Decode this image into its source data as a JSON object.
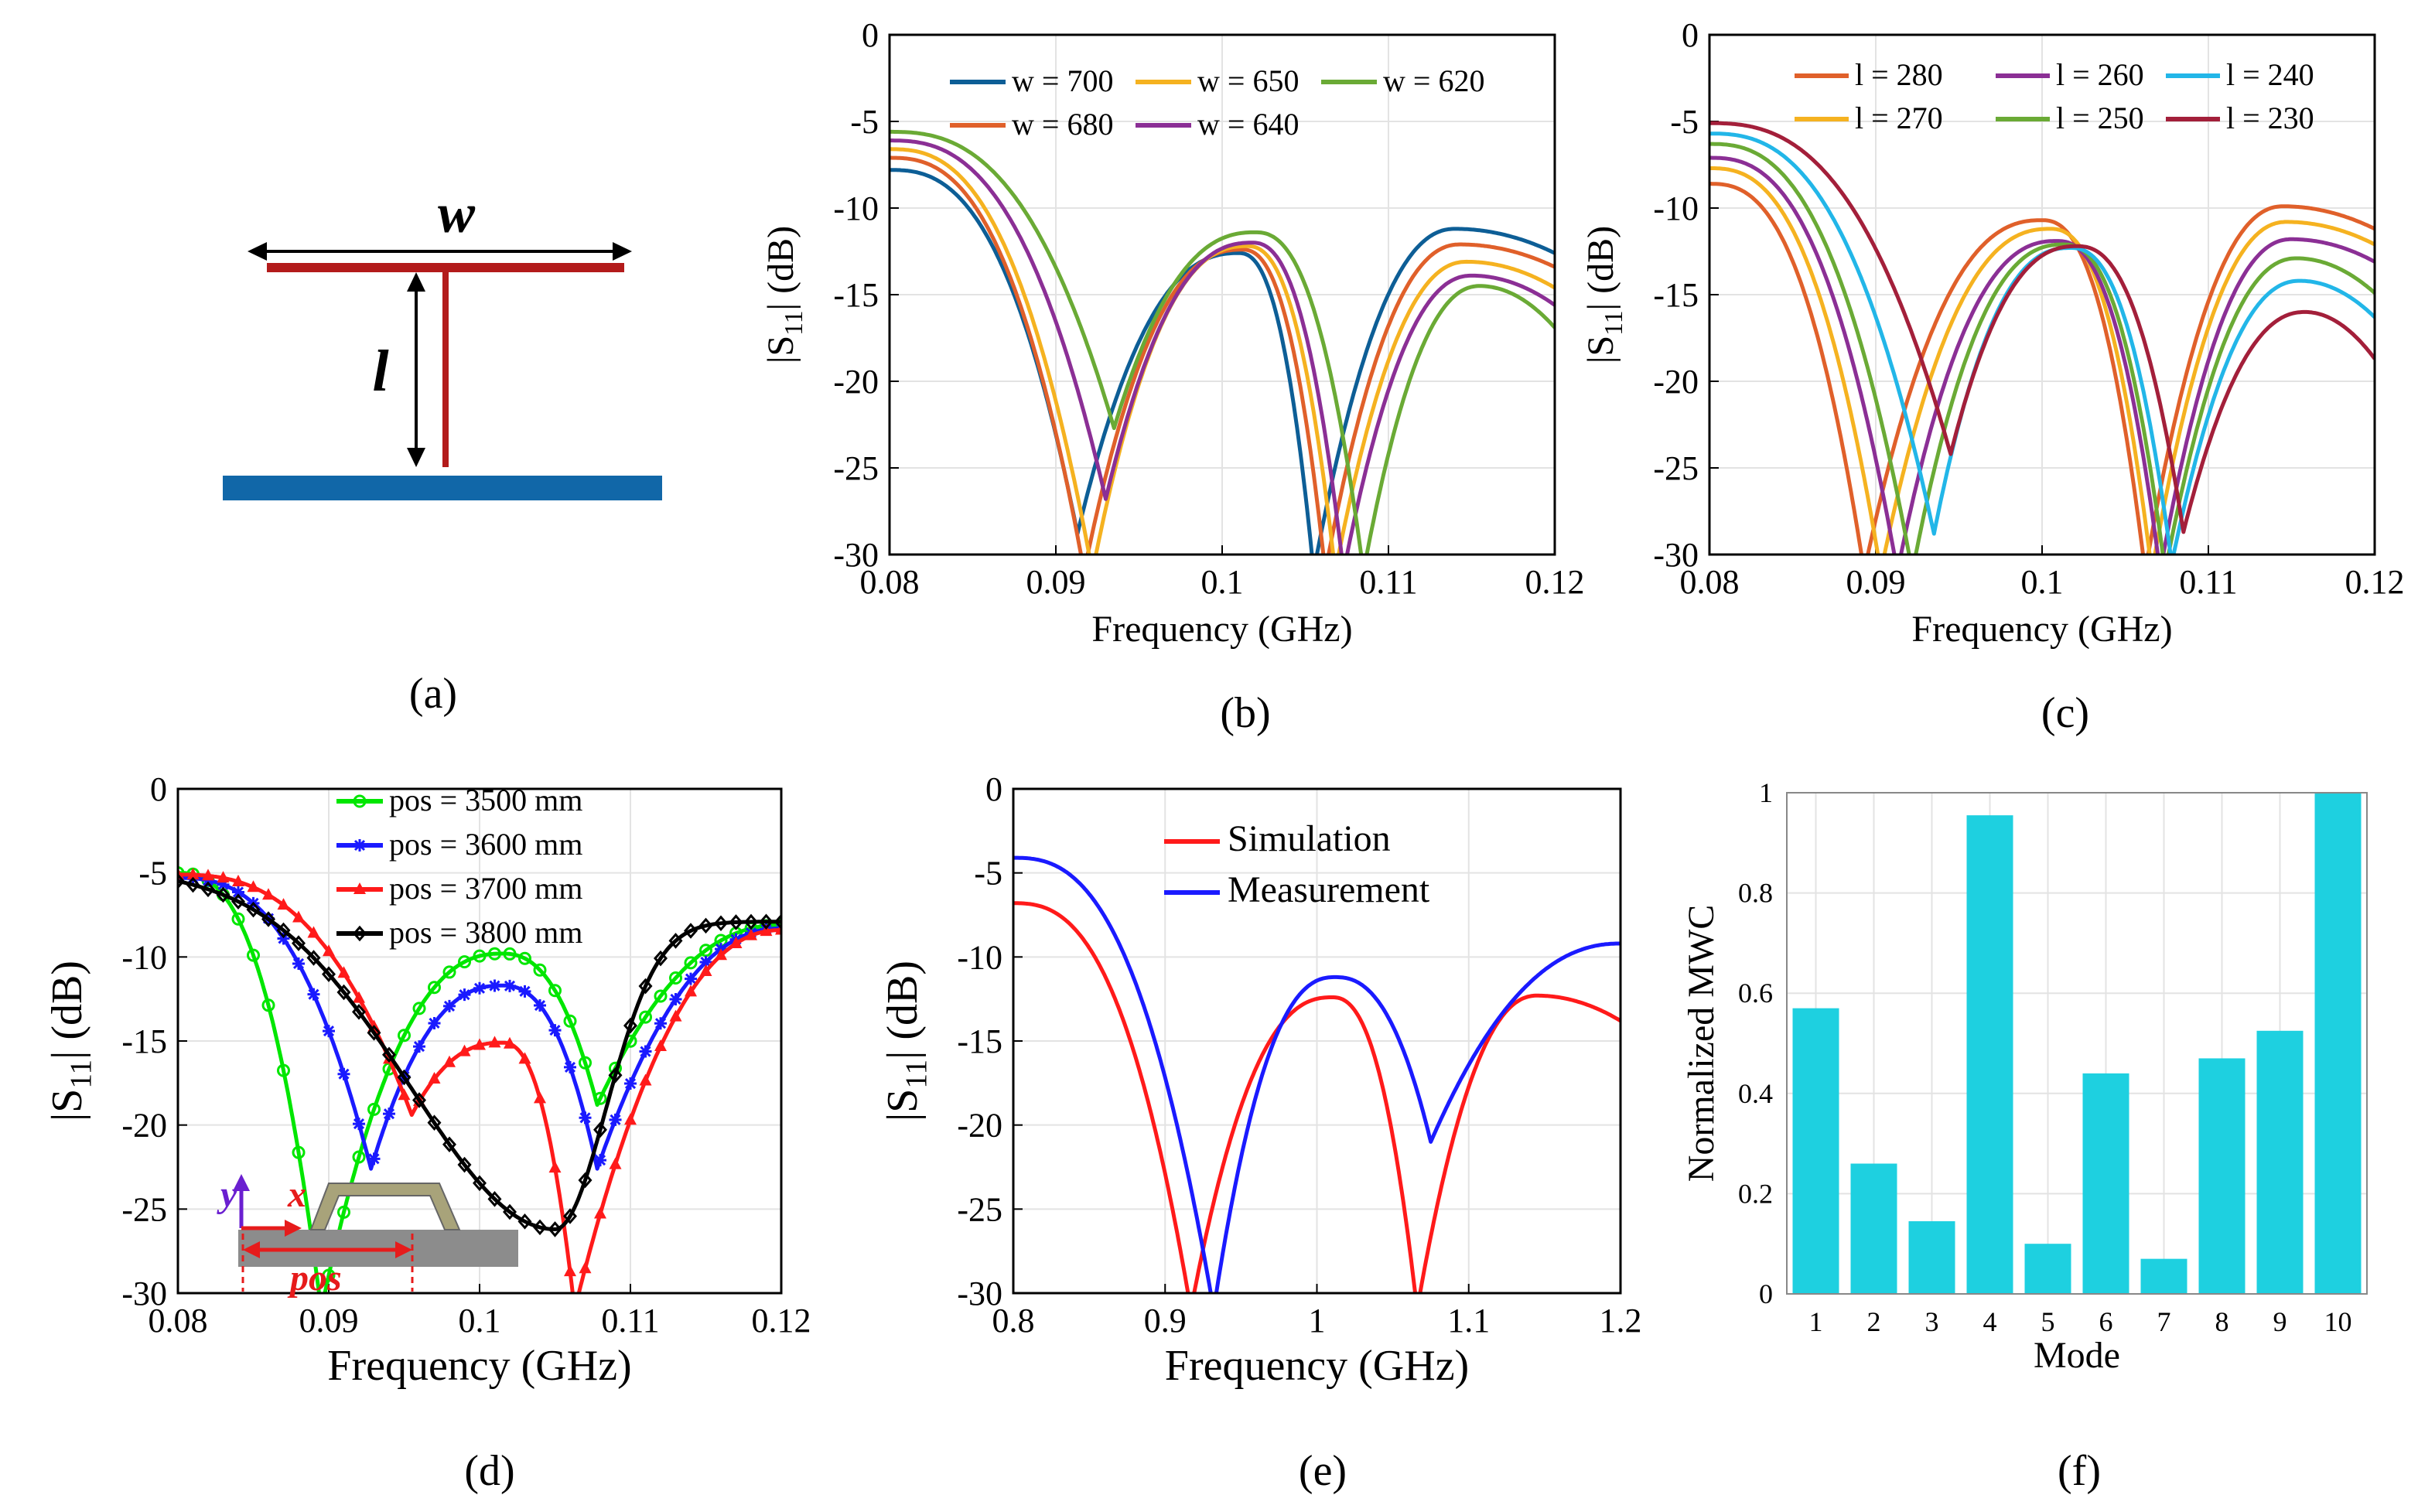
{
  "figure": {
    "captions": [
      "(a)",
      "(b)",
      "(c)",
      "(d)",
      "(e)",
      "(f)"
    ],
    "diagram_a": {
      "w_label": "w",
      "l_label": "l"
    },
    "inset_d": {
      "x_label": "x",
      "y_label": "y",
      "pos_label": "pos"
    }
  },
  "colors": {
    "w700": "#0d5e96",
    "w680": "#e0602a",
    "w650": "#f5b220",
    "w640": "#8b2f95",
    "w620": "#6aaa35",
    "l280": "#e0602a",
    "l270": "#f5b220",
    "l260": "#8b2f95",
    "l250": "#6aaa35",
    "l240": "#22b6e8",
    "l230": "#a31f3a",
    "green": "#00e600",
    "blue": "#1a1aff",
    "red": "#ff1a1a",
    "black": "#000000",
    "bar": "#1ed0e0",
    "antenna": "#b31b1b",
    "ground": "#1167a8"
  },
  "chart_data": [
    {
      "id": "b",
      "type": "line",
      "xlabel": "Frequency (GHz)",
      "ylabel": "|S11| (dB)",
      "xlim": [
        0.08,
        0.12
      ],
      "ylim": [
        -30,
        0
      ],
      "xticks": [
        "0.08",
        "0.09",
        "0.1",
        "0.11",
        "0.12"
      ],
      "yticks": [
        "0",
        "-5",
        "-10",
        "-15",
        "-20",
        "-25",
        "-30"
      ],
      "legend": [
        "w = 700",
        "w = 650",
        "w = 620",
        "w = 680",
        "w = 640"
      ],
      "series": [
        {
          "name": "w = 700",
          "color_key": "w700",
          "start": -7.8,
          "peak_x": 0.101,
          "peak_y": -12.6,
          "end": -12.6,
          "bump_x": 0.114,
          "bump_y": -11.2,
          "n1_x": 0.0913,
          "n1_y": -28.8,
          "n2_x": 0.1055,
          "n2_y": -31
        },
        {
          "name": "w = 680",
          "color_key": "w680",
          "start": -7.1,
          "peak_x": 0.1012,
          "peak_y": -12.4,
          "end": -13.4,
          "bump_x": 0.1143,
          "bump_y": -12.1,
          "n1_x": 0.0917,
          "n1_y": -31,
          "n2_x": 0.1062,
          "n2_y": -31
        },
        {
          "name": "w = 650",
          "color_key": "w650",
          "start": -6.6,
          "peak_x": 0.1015,
          "peak_y": -12.2,
          "end": -14.6,
          "bump_x": 0.1147,
          "bump_y": -13.1,
          "n1_x": 0.0922,
          "n1_y": -31,
          "n2_x": 0.1068,
          "n2_y": -31
        },
        {
          "name": "w = 640",
          "color_key": "w640",
          "start": -6.1,
          "peak_x": 0.1018,
          "peak_y": -12.0,
          "end": -15.6,
          "bump_x": 0.115,
          "bump_y": -13.9,
          "n1_x": 0.093,
          "n1_y": -26.8,
          "n2_x": 0.1073,
          "n2_y": -31
        },
        {
          "name": "w = 620",
          "color_key": "w620",
          "start": -5.6,
          "peak_x": 0.102,
          "peak_y": -11.4,
          "end": -16.9,
          "bump_x": 0.1155,
          "bump_y": -14.5,
          "n1_x": 0.0935,
          "n1_y": -22.7,
          "n2_x": 0.1085,
          "n2_y": -31
        }
      ]
    },
    {
      "id": "c",
      "type": "line",
      "xlabel": "Frequency (GHz)",
      "ylabel": "|S11| (dB)",
      "xlim": [
        0.08,
        0.12
      ],
      "ylim": [
        -30,
        0
      ],
      "xticks": [
        "0.08",
        "0.09",
        "0.1",
        "0.11",
        "0.12"
      ],
      "yticks": [
        "0",
        "-5",
        "-10",
        "-15",
        "-20",
        "-25",
        "-30"
      ],
      "legend": [
        "l = 280",
        "l = 260",
        "l = 240",
        "l = 270",
        "l = 250",
        "l = 230"
      ],
      "series": [
        {
          "name": "l = 280",
          "color_key": "l280",
          "start": -8.6,
          "peak_x": 0.1,
          "peak_y": -10.7,
          "end": -11.2,
          "bump_x": 0.1145,
          "bump_y": -9.9,
          "n1_x": 0.0893,
          "n1_y": -31,
          "n2_x": 0.1062,
          "n2_y": -31
        },
        {
          "name": "l = 270",
          "color_key": "l270",
          "start": -7.7,
          "peak_x": 0.1005,
          "peak_y": -11.2,
          "end": -12.1,
          "bump_x": 0.1147,
          "bump_y": -10.8,
          "n1_x": 0.0903,
          "n1_y": -31,
          "n2_x": 0.1066,
          "n2_y": -31
        },
        {
          "name": "l = 260",
          "color_key": "l260",
          "start": -7.1,
          "peak_x": 0.1009,
          "peak_y": -11.9,
          "end": -13.1,
          "bump_x": 0.115,
          "bump_y": -11.8,
          "n1_x": 0.0913,
          "n1_y": -31,
          "n2_x": 0.1071,
          "n2_y": -31
        },
        {
          "name": "l = 250",
          "color_key": "l250",
          "start": -6.3,
          "peak_x": 0.1013,
          "peak_y": -12.1,
          "end": -14.9,
          "bump_x": 0.1153,
          "bump_y": -12.9,
          "n1_x": 0.0922,
          "n1_y": -31,
          "n2_x": 0.1074,
          "n2_y": -31
        },
        {
          "name": "l = 240",
          "color_key": "l240",
          "start": -5.7,
          "peak_x": 0.1017,
          "peak_y": -12.3,
          "end": -16.3,
          "bump_x": 0.1155,
          "bump_y": -14.2,
          "n1_x": 0.0935,
          "n1_y": -28.8,
          "n2_x": 0.1078,
          "n2_y": -30.5
        },
        {
          "name": "l = 230",
          "color_key": "l230",
          "start": -5.1,
          "peak_x": 0.1021,
          "peak_y": -12.2,
          "end": -18.7,
          "bump_x": 0.1158,
          "bump_y": -16.0,
          "n1_x": 0.0945,
          "n1_y": -24.2,
          "n2_x": 0.1085,
          "n2_y": -28.7
        }
      ]
    },
    {
      "id": "d",
      "type": "line",
      "xlabel": "Frequency (GHz)",
      "ylabel": "|S11| (dB)",
      "xlim": [
        0.08,
        0.12
      ],
      "ylim": [
        -30,
        0
      ],
      "xticks": [
        "0.08",
        "0.09",
        "0.1",
        "0.11",
        "0.12"
      ],
      "yticks": [
        "0",
        "-5",
        "-10",
        "-15",
        "-20",
        "-25",
        "-30"
      ],
      "legend": [
        "pos = 3500 mm",
        "pos = 3600 mm",
        "pos = 3700 mm",
        "pos = 3800 mm"
      ],
      "series": [
        {
          "name": "pos = 3500 mm",
          "color_key": "green",
          "marker": "o",
          "start": -5.0,
          "peak_x": 0.1015,
          "peak_y": -9.8,
          "end": -8.1,
          "n1_x": 0.0895,
          "n1_y": -31,
          "n2_x": 0.1078,
          "n2_y": -18.8
        },
        {
          "name": "pos = 3600 mm",
          "color_key": "blue",
          "marker": "*",
          "start": -5.3,
          "peak_x": 0.1015,
          "peak_y": -11.7,
          "end": -8.3,
          "n1_x": 0.0928,
          "n1_y": -22.6,
          "n2_x": 0.1078,
          "n2_y": -22.6
        },
        {
          "name": "pos = 3700 mm",
          "color_key": "red",
          "marker": "^",
          "start": -5.1,
          "peak_x": 0.1015,
          "peak_y": -15.1,
          "end": -8.4,
          "n1_x": 0.0955,
          "n1_y": -19.4,
          "n2_x": 0.1063,
          "n2_y": -31
        },
        {
          "name": "pos = 3800 mm",
          "color_key": "black",
          "marker": "d",
          "start": -4.8,
          "n_x": 0.105,
          "n_y": -26.2,
          "end": -7.9
        }
      ]
    },
    {
      "id": "e",
      "type": "line",
      "xlabel": "Frequency (GHz)",
      "ylabel": "|S11| (dB)",
      "xlim": [
        0.8,
        1.2
      ],
      "ylim": [
        -30,
        0
      ],
      "xticks": [
        "0.8",
        "0.9",
        "1",
        "1.1",
        "1.2"
      ],
      "yticks": [
        "0",
        "-5",
        "-10",
        "-15",
        "-20",
        "-25",
        "-30"
      ],
      "legend": [
        "Simulation",
        "Measurement"
      ],
      "series": [
        {
          "name": "Simulation",
          "color_key": "red",
          "start": -6.8,
          "peak_x": 1.01,
          "peak_y": -12.4,
          "end": -13.8,
          "bump_x": 1.145,
          "bump_y": -12.3,
          "n1_x": 0.917,
          "n1_y": -31,
          "n2_x": 1.066,
          "n2_y": -31
        },
        {
          "name": "Measurement",
          "color_key": "blue",
          "start": -4.1,
          "peak_x": 1.012,
          "peak_y": -11.2,
          "end": -9.2,
          "n1_x": 0.932,
          "n1_y": -31,
          "n2_x": 1.075,
          "n2_y": -21.0
        }
      ]
    },
    {
      "id": "f",
      "type": "bar",
      "xlabel": "Mode",
      "ylabel": "Normalized MWC",
      "ylim": [
        0,
        1
      ],
      "yticks": [
        "0",
        "0.2",
        "0.4",
        "0.6",
        "0.8",
        "1"
      ],
      "categories": [
        "1",
        "2",
        "3",
        "4",
        "5",
        "6",
        "7",
        "8",
        "9",
        "10"
      ],
      "values": [
        0.57,
        0.26,
        0.145,
        0.955,
        0.1,
        0.44,
        0.07,
        0.47,
        0.525,
        1.0
      ]
    }
  ]
}
